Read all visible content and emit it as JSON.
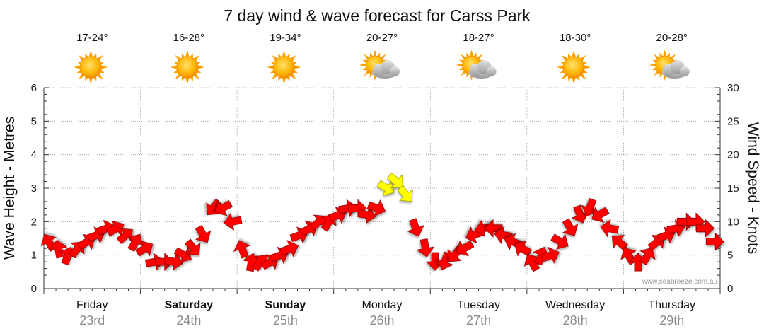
{
  "chart_data": {
    "type": "line",
    "title": "7 day wind & wave forecast for Carss Park",
    "ylabel_left": "Wave Height - Metres",
    "ylabel_right": "Wind Speed - Knots",
    "ylim_left": [
      0,
      6
    ],
    "ylim_right": [
      0,
      30
    ],
    "left_ticks": [
      "0",
      "1",
      "2",
      "3",
      "4",
      "5",
      "6"
    ],
    "right_ticks": [
      "0",
      "5",
      "10",
      "15",
      "20",
      "25",
      "30"
    ],
    "grid": true,
    "credit": "www.seabreeze.com.au",
    "days": [
      {
        "name": "Friday",
        "date": "23rd",
        "weekend": false,
        "temp": "17-24°",
        "weather": "sunny"
      },
      {
        "name": "Saturday",
        "date": "24th",
        "weekend": true,
        "temp": "16-28°",
        "weather": "sunny"
      },
      {
        "name": "Sunday",
        "date": "25th",
        "weekend": true,
        "temp": "19-34°",
        "weather": "sunny"
      },
      {
        "name": "Monday",
        "date": "26th",
        "weekend": false,
        "temp": "20-27°",
        "weather": "partly-cloudy"
      },
      {
        "name": "Tuesday",
        "date": "27th",
        "weekend": false,
        "temp": "18-27°",
        "weather": "partly-cloudy"
      },
      {
        "name": "Wednesday",
        "date": "28th",
        "weekend": false,
        "temp": "18-30°",
        "weather": "sunny"
      },
      {
        "name": "Thursday",
        "date": "29th",
        "weekend": false,
        "temp": "20-28°",
        "weather": "partly-cloudy"
      }
    ],
    "wind_series": {
      "name": "Wind speed (knots) and direction",
      "strong_threshold_knots": 13,
      "x_days": [
        0.05,
        0.15,
        0.25,
        0.35,
        0.45,
        0.55,
        0.65,
        0.75,
        0.85,
        0.95,
        1.05,
        1.15,
        1.25,
        1.35,
        1.45,
        1.55,
        1.65,
        1.75,
        1.85,
        1.95,
        2.05,
        2.15,
        2.25,
        2.35,
        2.45,
        2.55,
        2.65,
        2.75,
        2.85,
        2.95,
        3.05,
        3.15,
        3.25,
        3.35,
        3.45,
        3.55,
        3.65,
        3.75,
        3.85,
        3.95,
        4.05,
        4.15,
        4.25,
        4.35,
        4.45,
        4.55,
        4.65,
        4.75,
        4.85,
        4.95,
        5.05,
        5.15,
        5.25,
        5.35,
        5.45,
        5.55,
        5.65,
        5.75,
        5.85,
        5.95,
        6.05,
        6.15,
        6.25,
        6.35,
        6.45,
        6.55,
        6.65,
        6.75,
        6.85,
        6.95
      ],
      "knots": [
        7,
        6,
        5,
        6,
        7,
        8,
        9,
        9,
        8,
        7,
        6,
        4,
        4,
        4,
        5,
        6,
        8,
        12,
        12,
        10,
        6,
        4,
        4,
        4,
        5,
        6,
        8,
        9,
        10,
        10,
        11,
        12,
        12,
        11,
        12,
        15,
        16,
        14,
        9,
        6,
        4,
        4,
        5,
        6,
        8,
        9,
        9,
        8,
        7,
        6,
        4,
        5,
        5,
        7,
        9,
        11,
        12,
        11,
        9,
        7,
        5,
        4,
        5,
        7,
        8,
        9,
        10,
        10,
        9,
        7
      ],
      "direction_deg": [
        150,
        170,
        200,
        220,
        240,
        250,
        250,
        240,
        230,
        210,
        240,
        260,
        270,
        280,
        300,
        320,
        330,
        40,
        60,
        80,
        160,
        190,
        220,
        240,
        250,
        250,
        250,
        240,
        230,
        210,
        250,
        260,
        270,
        280,
        290,
        300,
        310,
        320,
        340,
        350,
        0,
        20,
        40,
        60,
        70,
        80,
        90,
        100,
        110,
        120,
        150,
        200,
        250,
        300,
        330,
        340,
        20,
        60,
        100,
        130,
        150,
        180,
        210,
        230,
        250,
        260,
        270,
        270,
        270,
        270
      ]
    }
  }
}
